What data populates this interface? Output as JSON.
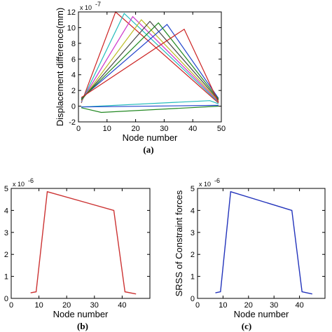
{
  "chart_data": [
    {
      "panel": "(a)",
      "type": "line",
      "xlabel": "Node number",
      "ylabel": "Displacement difference(mm)",
      "exponent": "x 10",
      "exponent_power": "-7",
      "xlim": [
        0,
        50
      ],
      "ylim": [
        -2,
        12
      ],
      "xticks": [
        0,
        10,
        20,
        30,
        40,
        50
      ],
      "yticks": [
        -2,
        0,
        2,
        4,
        6,
        8,
        10,
        12
      ],
      "grid": false,
      "series": [
        {
          "color": "#cc2222",
          "x": [
            1,
            13,
            49
          ],
          "y": [
            0.4,
            12.0,
            0.4
          ]
        },
        {
          "color": "#22bbbb",
          "x": [
            1,
            16,
            49
          ],
          "y": [
            0.5,
            11.8,
            0.5
          ]
        },
        {
          "color": "#cc33cc",
          "x": [
            1,
            19,
            49
          ],
          "y": [
            0.6,
            11.4,
            0.6
          ]
        },
        {
          "color": "#bbbb22",
          "x": [
            1,
            22,
            49
          ],
          "y": [
            0.7,
            11.0,
            0.7
          ]
        },
        {
          "color": "#444444",
          "x": [
            1,
            25,
            49
          ],
          "y": [
            0.8,
            10.8,
            0.8
          ]
        },
        {
          "color": "#2244cc",
          "x": [
            1,
            31,
            49
          ],
          "y": [
            1.0,
            10.4,
            1.0
          ]
        },
        {
          "color": "#228822",
          "x": [
            1,
            28,
            49
          ],
          "y": [
            0.9,
            10.6,
            0.9
          ]
        },
        {
          "color": "#cc2222",
          "x": [
            1,
            37,
            49
          ],
          "y": [
            1.1,
            9.8,
            0.5
          ]
        },
        {
          "color": "#22bbbb",
          "x": [
            1,
            46,
            49
          ],
          "y": [
            -0.1,
            0.7,
            0.3
          ]
        },
        {
          "color": "#228822",
          "x": [
            1,
            8,
            49
          ],
          "y": [
            -0.2,
            -0.8,
            0.0
          ]
        },
        {
          "color": "#2244cc",
          "x": [
            1,
            49
          ],
          "y": [
            -0.1,
            0.1
          ]
        }
      ]
    },
    {
      "panel": "(b)",
      "type": "line",
      "xlabel": "Node number",
      "ylabel": "",
      "exponent": "x 10",
      "exponent_power": "-6",
      "xlim": [
        0,
        50
      ],
      "ylim": [
        0,
        5
      ],
      "xticks": [
        0,
        10,
        20,
        30,
        40
      ],
      "yticks": [
        0,
        1,
        2,
        3,
        4,
        5
      ],
      "grid": false,
      "series": [
        {
          "color": "#cc3333",
          "x": [
            7,
            9,
            13,
            37,
            41,
            45
          ],
          "y": [
            0.25,
            0.3,
            4.85,
            4.0,
            0.3,
            0.2
          ]
        }
      ]
    },
    {
      "panel": "(c)",
      "type": "line",
      "xlabel": "Node number",
      "ylabel": "SRSS of Constraint forces",
      "exponent": "x 10",
      "exponent_power": "-6",
      "xlim": [
        0,
        50
      ],
      "ylim": [
        0,
        5
      ],
      "xticks": [
        0,
        10,
        20,
        30,
        40
      ],
      "yticks": [
        0,
        1,
        2,
        3,
        4,
        5
      ],
      "grid": false,
      "series": [
        {
          "color": "#2233bb",
          "x": [
            7,
            9,
            13,
            37,
            41,
            45
          ],
          "y": [
            0.25,
            0.3,
            4.85,
            4.0,
            0.3,
            0.2
          ]
        }
      ]
    }
  ],
  "captions": [
    "(a)",
    "(b)",
    "(c)"
  ]
}
